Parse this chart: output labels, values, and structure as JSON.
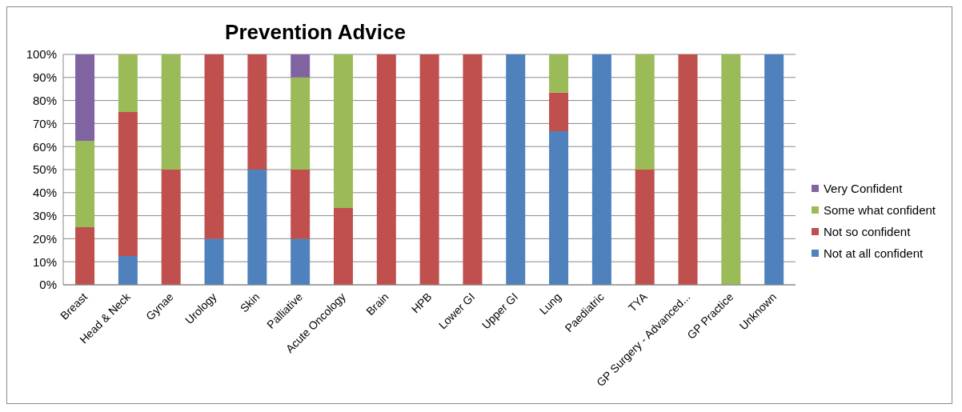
{
  "chart_data": {
    "type": "bar",
    "title": "Prevention Advice",
    "stacked": true,
    "legend": "right",
    "grid": "y",
    "categories": [
      "Breast",
      "Head & Neck",
      "Gynae",
      "Urology",
      "Skin",
      "Palliative",
      "Acute Oncology",
      "Brain",
      "HPB",
      "Lower GI",
      "Upper GI",
      "Lung",
      "Paediatric",
      "TYA",
      "GP Surgery - Advanced...",
      "GP Practice",
      "Unknown"
    ],
    "series": [
      {
        "name": "Not at all confident",
        "color": "#4f81bd",
        "values": [
          0,
          12.5,
          0,
          20,
          50,
          20,
          0,
          0,
          0,
          0,
          100,
          66.7,
          100,
          0,
          0,
          0,
          100
        ]
      },
      {
        "name": "Not so confident",
        "color": "#c0504d",
        "values": [
          25,
          62.5,
          50,
          80,
          50,
          30,
          33.3,
          100,
          100,
          100,
          0,
          16.7,
          0,
          50,
          100,
          0,
          0
        ]
      },
      {
        "name": "Some what confident",
        "color": "#9bbb59",
        "values": [
          37.5,
          25,
          50,
          0,
          0,
          40,
          66.7,
          0,
          0,
          0,
          0,
          16.6,
          0,
          50,
          0,
          100,
          0
        ]
      },
      {
        "name": "Very Confident",
        "color": "#8064a2",
        "values": [
          37.5,
          0,
          0,
          0,
          0,
          10,
          0,
          0,
          0,
          0,
          0,
          0,
          0,
          0,
          0,
          0,
          0
        ]
      }
    ],
    "ylim": [
      0,
      100
    ],
    "yticks": [
      {
        "value": 0,
        "label": "0%"
      },
      {
        "value": 10,
        "label": "10%"
      },
      {
        "value": 20,
        "label": "20%"
      },
      {
        "value": 30,
        "label": "30%"
      },
      {
        "value": 40,
        "label": "40%"
      },
      {
        "value": 50,
        "label": "50%"
      },
      {
        "value": 60,
        "label": "60%"
      },
      {
        "value": 70,
        "label": "70%"
      },
      {
        "value": 80,
        "label": "80%"
      },
      {
        "value": 90,
        "label": "90%"
      },
      {
        "value": 100,
        "label": "100%"
      }
    ]
  }
}
